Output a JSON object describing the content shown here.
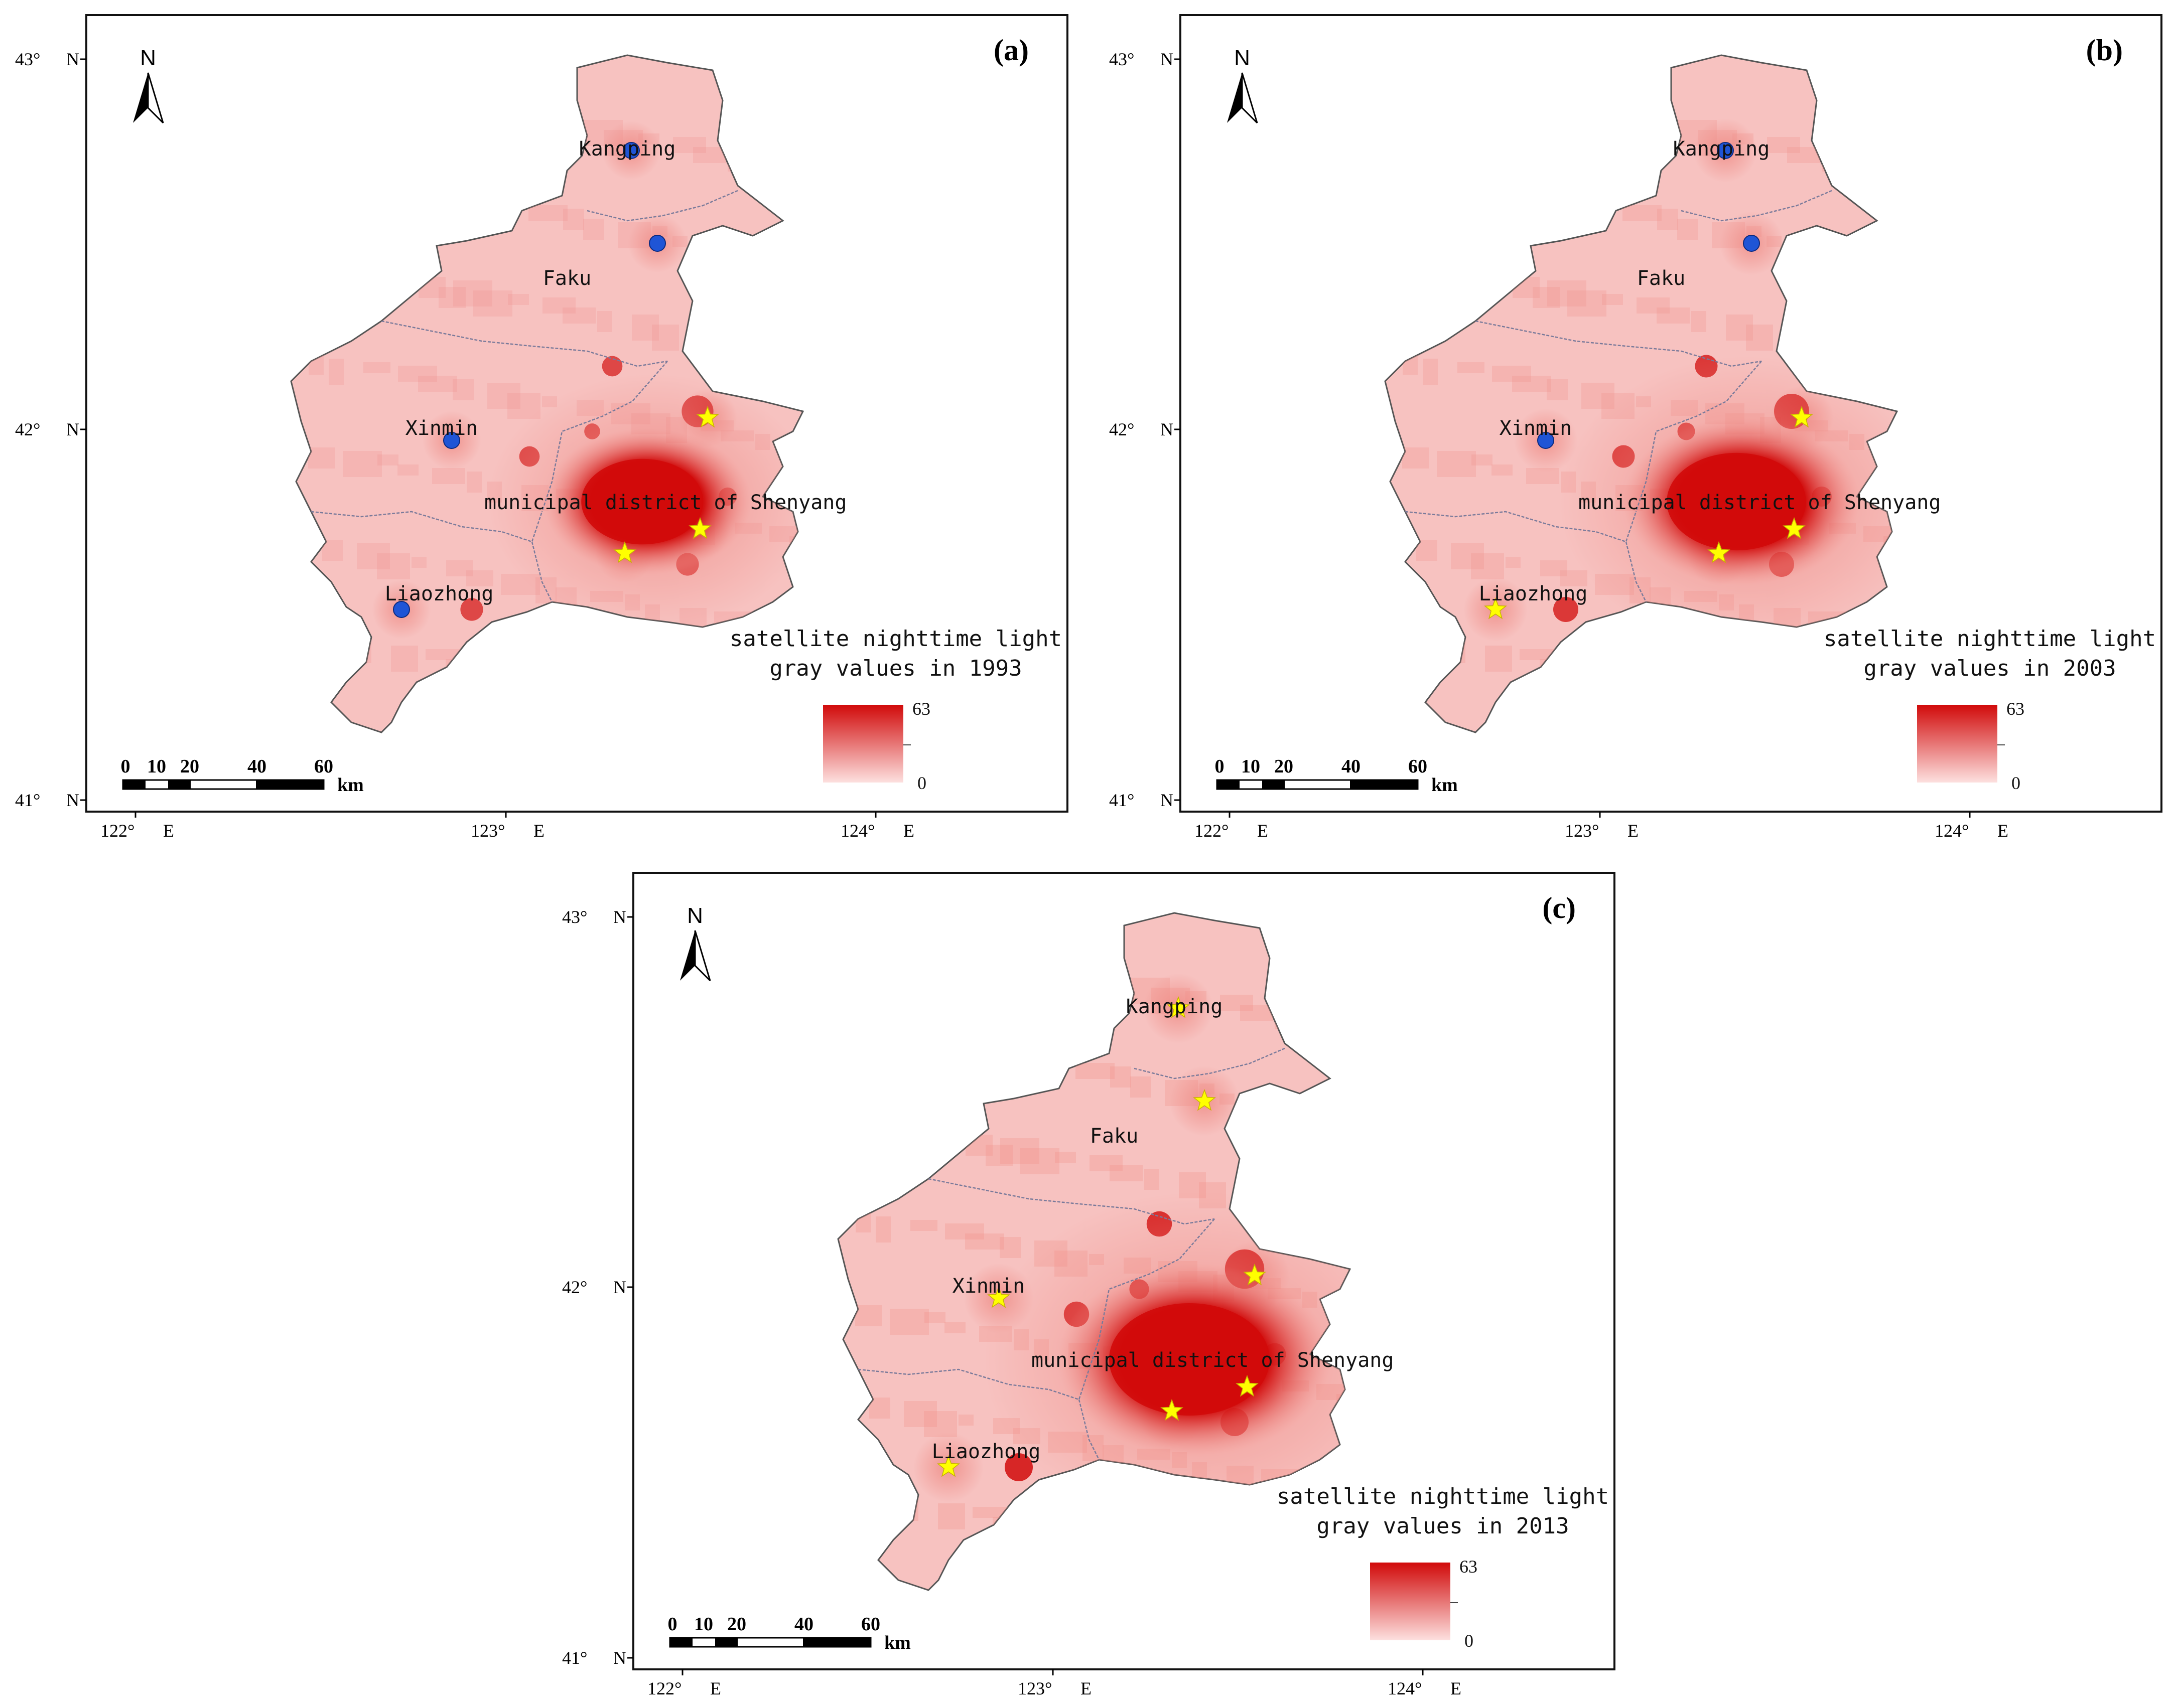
{
  "title": "",
  "colors": {
    "land_base": "#f7c2c0",
    "land_mid": "#ef8c86",
    "urban_core": "#d10a0a",
    "boundary": "#7a7a9a",
    "rural_marker": "#1f55d6",
    "urban_marker": "#ffff00"
  },
  "axes": {
    "lat_labels": [
      "43°",
      "42°",
      "41°"
    ],
    "lat_suffix": "N",
    "lon_labels": [
      "122°",
      "123°",
      "124°"
    ],
    "lon_suffix": "E"
  },
  "scale_bar": {
    "ticks": [
      "0",
      "10",
      "20",
      "40",
      "60"
    ],
    "unit": "km"
  },
  "north_arrow": {
    "label": "N",
    "icon": "north-arrow-icon"
  },
  "place_names": {
    "kangping": "Kangping",
    "faku": "Faku",
    "xinmin": "Xinmin",
    "shenyang": "municipal district of Shenyang",
    "liaozhong": "Liaozhong"
  },
  "legend": {
    "max": "63",
    "min": "0"
  },
  "panels": [
    {
      "letter": "(a)",
      "year": 1993,
      "legend_line1": "satellite nighttime light",
      "legend_line2": "gray values in 1993",
      "core_intensity": 0.55,
      "markers": {
        "kangping": "dot",
        "kangping_south": "dot",
        "xinmin": "dot",
        "liaozhong": "dot",
        "shenyang_north": "star",
        "shenyang_east": "star",
        "shenyang_south": "star"
      }
    },
    {
      "letter": "(b)",
      "year": 2003,
      "legend_line1": "satellite nighttime light",
      "legend_line2": "gray values in 2003",
      "core_intensity": 0.75,
      "markers": {
        "kangping": "dot",
        "kangping_south": "dot",
        "xinmin": "dot",
        "liaozhong": "star",
        "shenyang_north": "star",
        "shenyang_east": "star",
        "shenyang_south": "star"
      }
    },
    {
      "letter": "(c)",
      "year": 2013,
      "legend_line1": "satellite nighttime light",
      "legend_line2": "gray values in 2013",
      "core_intensity": 1.0,
      "markers": {
        "kangping": "star",
        "kangping_south": "star",
        "xinmin": "star",
        "liaozhong": "star",
        "shenyang_north": "star",
        "shenyang_east": "star",
        "shenyang_south": "star"
      }
    }
  ]
}
